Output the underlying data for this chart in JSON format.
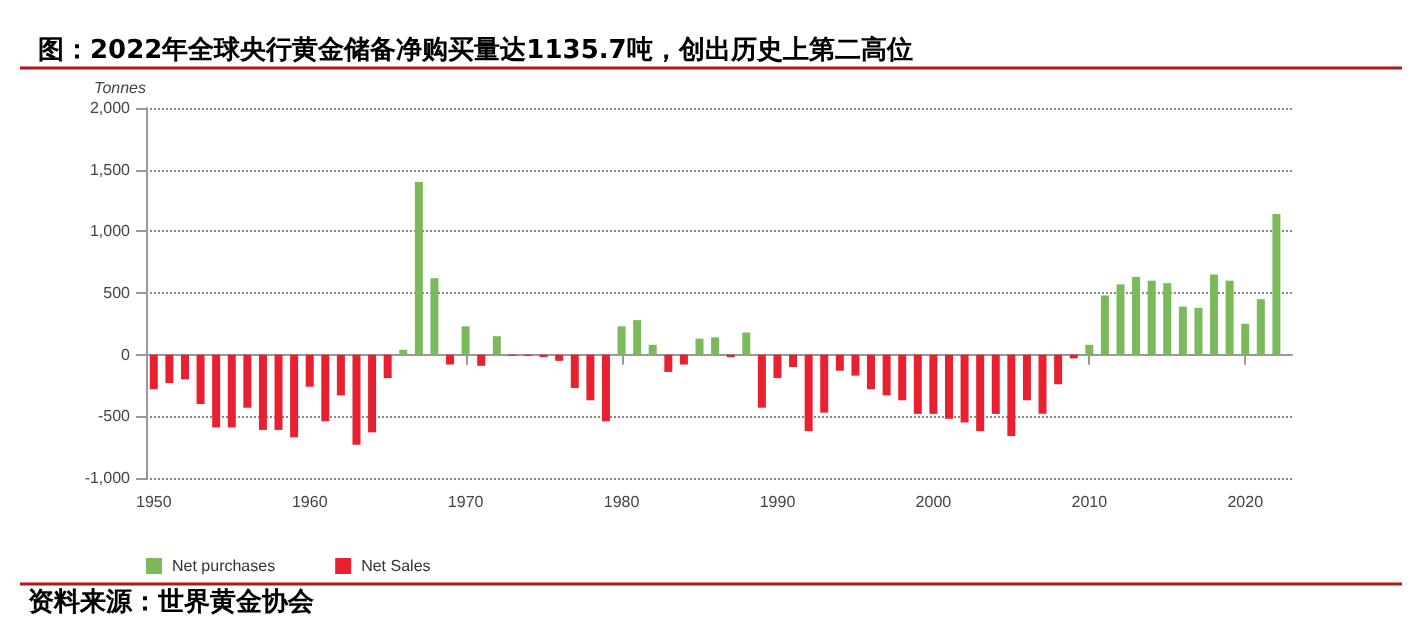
{
  "chart_data": {
    "type": "bar",
    "title": "图：2022年全球央行黄金储备净购买量达1135.7吨，创出历史上第二高位",
    "ylabel": "Tonnes",
    "annotations": [
      "资料来源：世界黄金协会"
    ],
    "x": [
      1950,
      1951,
      1952,
      1953,
      1954,
      1955,
      1956,
      1957,
      1958,
      1959,
      1960,
      1961,
      1962,
      1963,
      1964,
      1965,
      1966,
      1967,
      1968,
      1969,
      1970,
      1971,
      1972,
      1973,
      1974,
      1975,
      1976,
      1977,
      1978,
      1979,
      1980,
      1981,
      1982,
      1983,
      1984,
      1985,
      1986,
      1987,
      1988,
      1989,
      1990,
      1991,
      1992,
      1993,
      1994,
      1995,
      1996,
      1997,
      1998,
      1999,
      2000,
      2001,
      2002,
      2003,
      2004,
      2005,
      2006,
      2007,
      2008,
      2009,
      2010,
      2011,
      2012,
      2013,
      2014,
      2015,
      2016,
      2017,
      2018,
      2019,
      2020,
      2021,
      2022
    ],
    "series": [
      {
        "name": "Net purchases",
        "color": "#7aba5a",
        "values": [
          null,
          null,
          null,
          null,
          null,
          null,
          null,
          null,
          null,
          null,
          null,
          null,
          null,
          null,
          null,
          null,
          40,
          1400,
          620,
          null,
          230,
          null,
          150,
          null,
          null,
          null,
          null,
          null,
          null,
          null,
          230,
          280,
          80,
          null,
          null,
          130,
          140,
          null,
          180,
          null,
          null,
          null,
          null,
          null,
          null,
          null,
          null,
          null,
          null,
          null,
          null,
          null,
          null,
          null,
          null,
          null,
          null,
          null,
          null,
          null,
          80,
          480,
          570,
          630,
          600,
          580,
          390,
          380,
          650,
          600,
          250,
          450,
          1140
        ]
      },
      {
        "name": "Net Sales",
        "color": "#e8202f",
        "values": [
          -280,
          -230,
          -200,
          -400,
          -590,
          -590,
          -430,
          -610,
          -610,
          -670,
          -260,
          -540,
          -330,
          -730,
          -630,
          -190,
          null,
          null,
          null,
          -80,
          null,
          -90,
          null,
          -10,
          -10,
          -20,
          -50,
          -270,
          -370,
          -540,
          null,
          null,
          null,
          -140,
          -80,
          null,
          null,
          -20,
          null,
          -430,
          -190,
          -100,
          -620,
          -470,
          -130,
          -170,
          -280,
          -330,
          -370,
          -480,
          -480,
          -520,
          -550,
          -620,
          -480,
          -660,
          -370,
          -480,
          -240,
          -30,
          null,
          null,
          null,
          null,
          null,
          null,
          null,
          null,
          null,
          null,
          null,
          null,
          null
        ]
      }
    ],
    "xlim": [
      1949.5,
      2023
    ],
    "xticks": [
      1950,
      1960,
      1970,
      1980,
      1990,
      2000,
      2010,
      2020
    ],
    "ylim": [
      -1000,
      2000
    ],
    "yticks": [
      {
        "value": -1000,
        "label": "-1,000"
      },
      -500,
      0,
      500,
      {
        "value": 1000,
        "label": "1,000"
      },
      {
        "value": 1500,
        "label": "1,500"
      },
      {
        "value": 2000,
        "label": "2,000"
      }
    ],
    "grid": "y",
    "legend": "bottom left"
  }
}
